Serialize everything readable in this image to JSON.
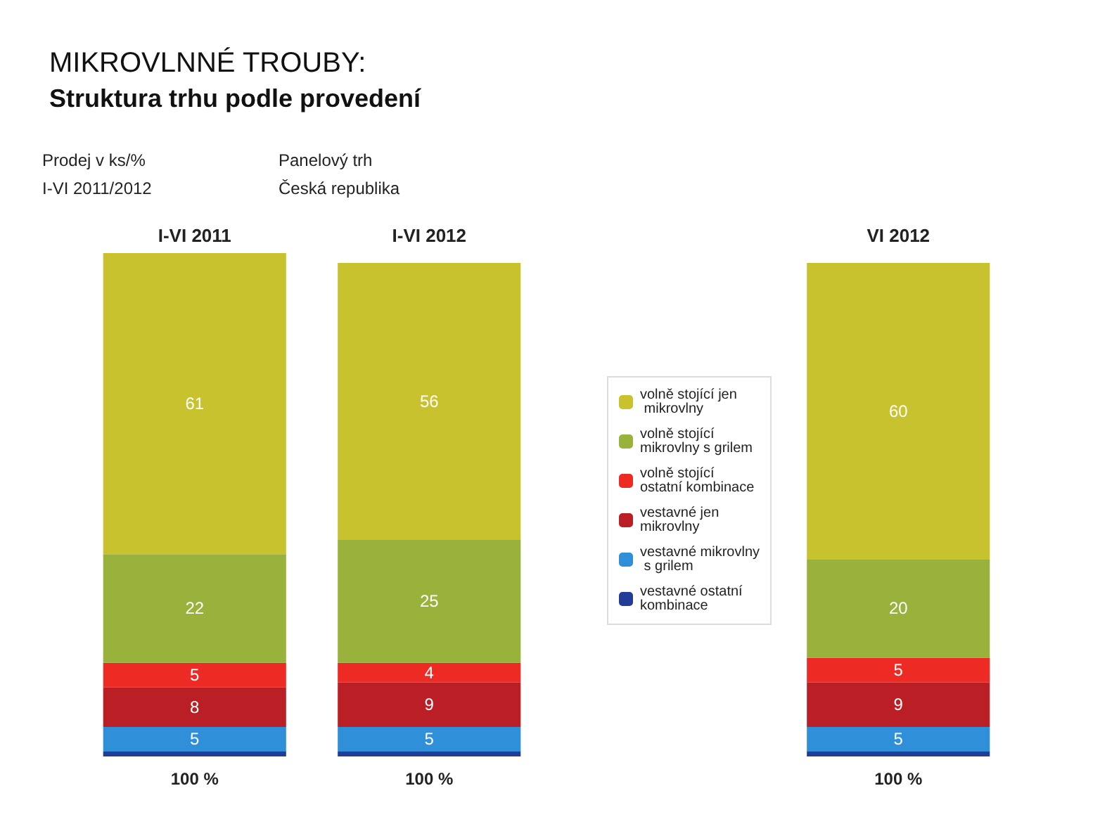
{
  "chart_data": {
    "type": "bar",
    "stacked": true,
    "title": "MIKROVLNNÉ TROUBY:",
    "subtitle": "Struktura trhu podle provedení",
    "annotations": [
      "Prodej v ks/%",
      "I-VI 2011/2012",
      "Panelový trh",
      "Česká republika"
    ],
    "categories": [
      "I-VI 2011",
      "I-VI 2012",
      null,
      "VI 2012"
    ],
    "series": [
      {
        "name": "vestavné ostatní kombinace",
        "color": "#233c96",
        "values": [
          1,
          1,
          null,
          1
        ]
      },
      {
        "name": "vestavné mikrovlny s grilem",
        "color": "#2f8fd8",
        "values": [
          5,
          5,
          null,
          5
        ],
        "value_labels": [
          "5",
          "5",
          null,
          "5"
        ]
      },
      {
        "name": "vestavné jen mikrovlny",
        "color": "#b91f24",
        "values": [
          8,
          9,
          null,
          9
        ],
        "value_labels": [
          "8",
          "9",
          null,
          "9"
        ]
      },
      {
        "name": "volně stojící ostatní kombinace",
        "color": "#ee2a24",
        "values": [
          5,
          4,
          null,
          5
        ],
        "value_labels": [
          "5",
          "4",
          null,
          "5"
        ]
      },
      {
        "name": "volně stojící mikrovlny s grilem",
        "color": "#98b23c",
        "values": [
          22,
          25,
          null,
          20
        ],
        "value_labels": [
          "22",
          "25",
          null,
          "20"
        ]
      },
      {
        "name": "volně stojící jen mikrovlny",
        "color": "#c8c22e",
        "values": [
          61,
          56,
          null,
          60
        ],
        "value_labels": [
          "61",
          "56",
          null,
          "60"
        ]
      }
    ],
    "totals": [
      "100 %",
      "100 %",
      null,
      "100 %"
    ],
    "legend": "center"
  }
}
